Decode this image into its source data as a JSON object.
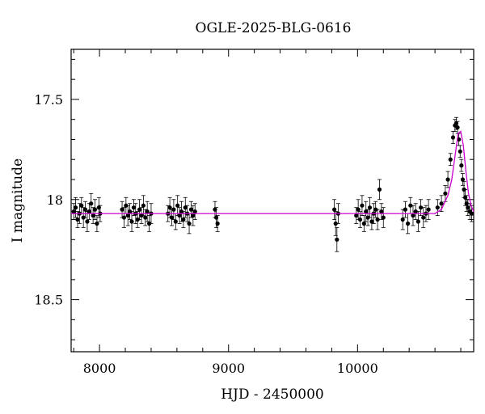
{
  "chart_data": {
    "type": "scatter",
    "title": "OGLE-2025-BLG-0616",
    "xlabel": "HJD - 2450000",
    "ylabel": "I magnitude",
    "xlim": [
      7780,
      10900
    ],
    "ylim": [
      18.76,
      17.25
    ],
    "y_inverted": true,
    "grid": false,
    "x_ticks_major": [
      8000,
      9000,
      10000
    ],
    "x_tick_labels": [
      "8000",
      "9000",
      "10000"
    ],
    "y_ticks_major": [
      17.5,
      18,
      18.5
    ],
    "y_tick_labels": [
      "17.5",
      "18",
      "18.5"
    ],
    "series": [
      {
        "marker": "filled-circle-with-errorbars",
        "color": "#000000",
        "x": [
          7800,
          7815,
          7830,
          7845,
          7860,
          7875,
          7890,
          7905,
          7920,
          7935,
          7950,
          7965,
          7980,
          7995,
          8005,
          8175,
          8190,
          8205,
          8220,
          8235,
          8250,
          8265,
          8280,
          8295,
          8310,
          8325,
          8340,
          8355,
          8370,
          8385,
          8400,
          8530,
          8545,
          8560,
          8575,
          8590,
          8605,
          8620,
          8635,
          8650,
          8665,
          8680,
          8695,
          8710,
          8725,
          8740,
          8895,
          8905,
          8915,
          9820,
          9830,
          9840,
          9850,
          9990,
          10005,
          10020,
          10035,
          10050,
          10065,
          10080,
          10095,
          10110,
          10125,
          10140,
          10155,
          10170,
          10185,
          10200,
          10350,
          10370,
          10390,
          10410,
          10430,
          10450,
          10470,
          10490,
          10510,
          10530,
          10550,
          10620,
          10650,
          10680,
          10700,
          10720,
          10740,
          10755,
          10765,
          10775,
          10785,
          10795,
          10805,
          10815,
          10825,
          10835,
          10845,
          10855,
          10870,
          10885
        ],
        "y": [
          18.06,
          18.04,
          18.1,
          18.07,
          18.03,
          18.09,
          18.05,
          18.11,
          18.06,
          18.02,
          18.08,
          18.05,
          18.12,
          18.04,
          18.07,
          18.05,
          18.09,
          18.03,
          18.08,
          18.06,
          18.11,
          18.04,
          18.07,
          18.1,
          18.05,
          18.08,
          18.03,
          18.09,
          18.06,
          18.12,
          18.07,
          18.07,
          18.04,
          18.09,
          18.05,
          18.11,
          18.03,
          18.08,
          18.06,
          18.1,
          18.04,
          18.07,
          18.12,
          18.05,
          18.08,
          18.06,
          18.05,
          18.09,
          18.12,
          18.05,
          18.12,
          18.2,
          18.07,
          18.08,
          18.05,
          18.1,
          18.03,
          18.12,
          18.06,
          18.09,
          18.04,
          18.11,
          18.07,
          18.05,
          18.1,
          17.95,
          18.06,
          18.09,
          18.1,
          18.05,
          18.12,
          18.03,
          18.08,
          18.06,
          18.11,
          18.04,
          18.09,
          18.07,
          18.05,
          18.04,
          18.02,
          17.97,
          17.9,
          17.8,
          17.69,
          17.63,
          17.62,
          17.64,
          17.7,
          17.76,
          17.83,
          17.9,
          17.95,
          17.99,
          18.02,
          18.04,
          18.06,
          18.07
        ],
        "err": [
          0.04,
          0.05,
          0.04,
          0.05,
          0.04,
          0.05,
          0.04,
          0.05,
          0.04,
          0.05,
          0.04,
          0.05,
          0.04,
          0.05,
          0.04,
          0.04,
          0.05,
          0.04,
          0.05,
          0.04,
          0.05,
          0.04,
          0.05,
          0.04,
          0.05,
          0.04,
          0.05,
          0.04,
          0.05,
          0.04,
          0.05,
          0.04,
          0.05,
          0.04,
          0.05,
          0.04,
          0.05,
          0.04,
          0.05,
          0.04,
          0.05,
          0.04,
          0.05,
          0.04,
          0.05,
          0.04,
          0.04,
          0.05,
          0.04,
          0.05,
          0.06,
          0.06,
          0.05,
          0.04,
          0.05,
          0.04,
          0.05,
          0.04,
          0.05,
          0.04,
          0.05,
          0.04,
          0.05,
          0.04,
          0.05,
          0.05,
          0.04,
          0.05,
          0.05,
          0.04,
          0.05,
          0.04,
          0.05,
          0.04,
          0.05,
          0.04,
          0.05,
          0.04,
          0.05,
          0.04,
          0.04,
          0.04,
          0.04,
          0.03,
          0.03,
          0.03,
          0.03,
          0.03,
          0.03,
          0.03,
          0.03,
          0.03,
          0.04,
          0.04,
          0.04,
          0.04,
          0.04,
          0.04
        ]
      },
      {
        "marker": "line",
        "color": "#cc00cc",
        "x": [
          7780,
          9000,
          10000,
          10600,
          10650,
          10700,
          10730,
          10760,
          10780,
          10800,
          10820,
          10840,
          10860,
          10880,
          10900
        ],
        "y": [
          18.07,
          18.07,
          18.07,
          18.07,
          18.05,
          17.98,
          17.9,
          17.76,
          17.67,
          17.66,
          17.73,
          17.86,
          17.97,
          18.03,
          18.06
        ]
      }
    ]
  }
}
